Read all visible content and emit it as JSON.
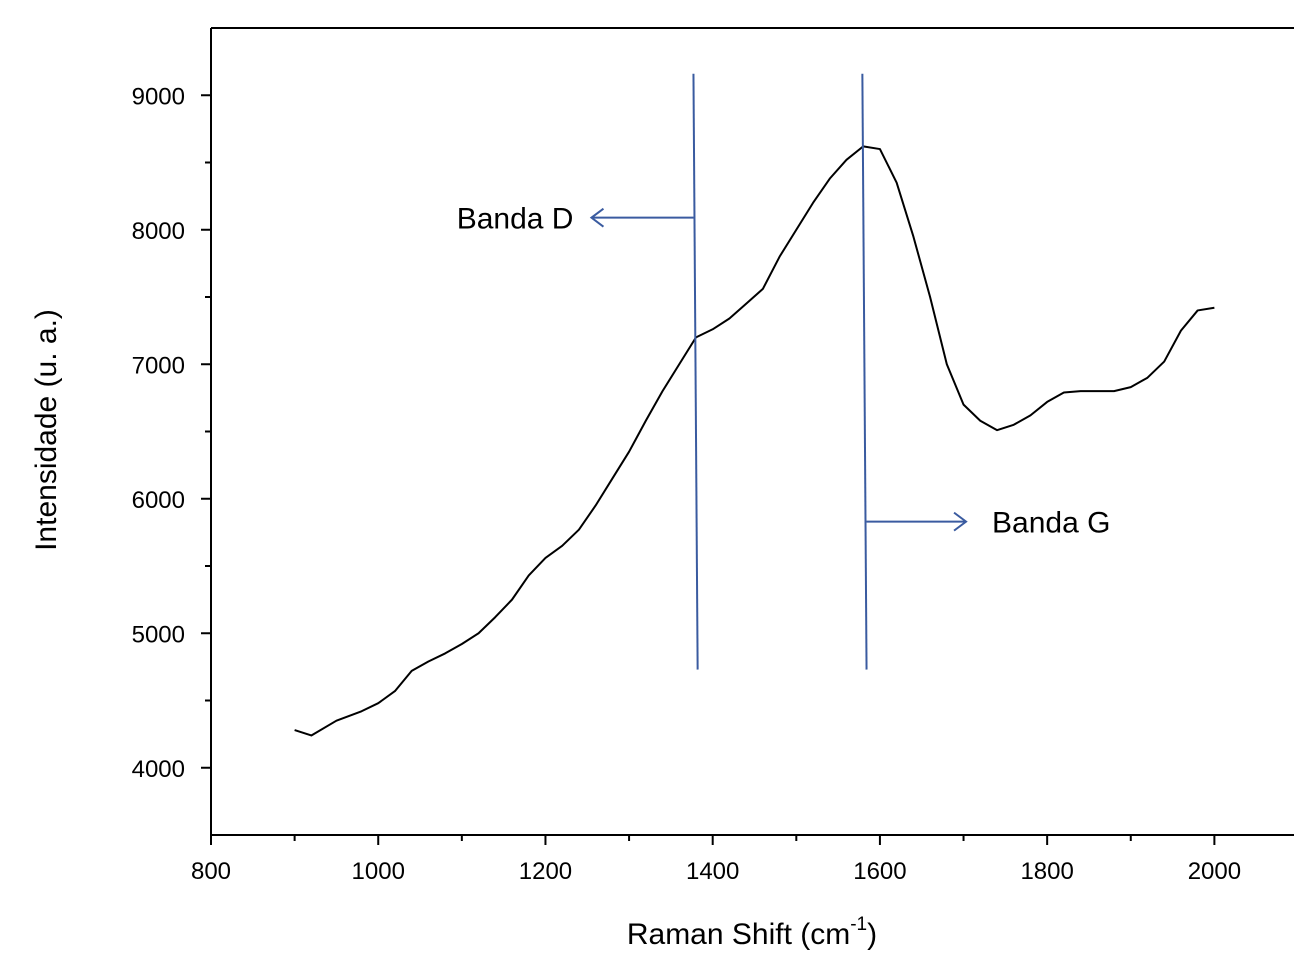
{
  "chart_data": {
    "type": "line",
    "x_label": [
      "Raman Shift (cm",
      "-1",
      ")"
    ],
    "y_label": "Intensidade (u. a.)",
    "x": [
      900,
      920,
      950,
      980,
      1000,
      1020,
      1040,
      1060,
      1080,
      1100,
      1120,
      1140,
      1160,
      1180,
      1200,
      1220,
      1240,
      1260,
      1280,
      1300,
      1320,
      1340,
      1360,
      1380,
      1400,
      1420,
      1440,
      1460,
      1480,
      1500,
      1520,
      1540,
      1560,
      1580,
      1600,
      1620,
      1640,
      1660,
      1680,
      1700,
      1720,
      1740,
      1760,
      1780,
      1800,
      1820,
      1840,
      1860,
      1880,
      1900,
      1920,
      1940,
      1960,
      1980,
      2000
    ],
    "series": [
      {
        "color": "#000000",
        "values": [
          4280,
          4240,
          4350,
          4420,
          4480,
          4570,
          4720,
          4790,
          4850,
          4920,
          5000,
          5120,
          5250,
          5430,
          5560,
          5650,
          5770,
          5950,
          6150,
          6350,
          6580,
          6800,
          7000,
          7200,
          7260,
          7340,
          7450,
          7560,
          7800,
          8000,
          8200,
          8380,
          8520,
          8620,
          8600,
          8350,
          7950,
          7500,
          7000,
          6700,
          6580,
          6510,
          6550,
          6620,
          6720,
          6790,
          6800,
          6800,
          6800,
          6830,
          6900,
          7020,
          7250,
          7400,
          7420
        ]
      }
    ],
    "xlim": [
      800,
      2100
    ],
    "xticks": [
      800,
      1000,
      1200,
      1400,
      1600,
      1800,
      2000
    ],
    "ylim": [
      3500,
      9500
    ],
    "yticks": [
      4000,
      5000,
      6000,
      7000,
      8000,
      9000
    ],
    "annotation_color": "#3a5ba0",
    "annotations": [
      {
        "text": "Banda D",
        "line": {
          "x": [
            1377,
            1382
          ],
          "y": [
            9160,
            4730
          ]
        },
        "arrow": {
          "x": [
            1377,
            1255
          ],
          "y": 8090
        }
      },
      {
        "text": "Banda G",
        "line": {
          "x": [
            1579,
            1584
          ],
          "y": [
            9160,
            4730
          ]
        },
        "arrow": {
          "x": [
            1584,
            1703
          ],
          "y": 5830
        }
      }
    ]
  }
}
